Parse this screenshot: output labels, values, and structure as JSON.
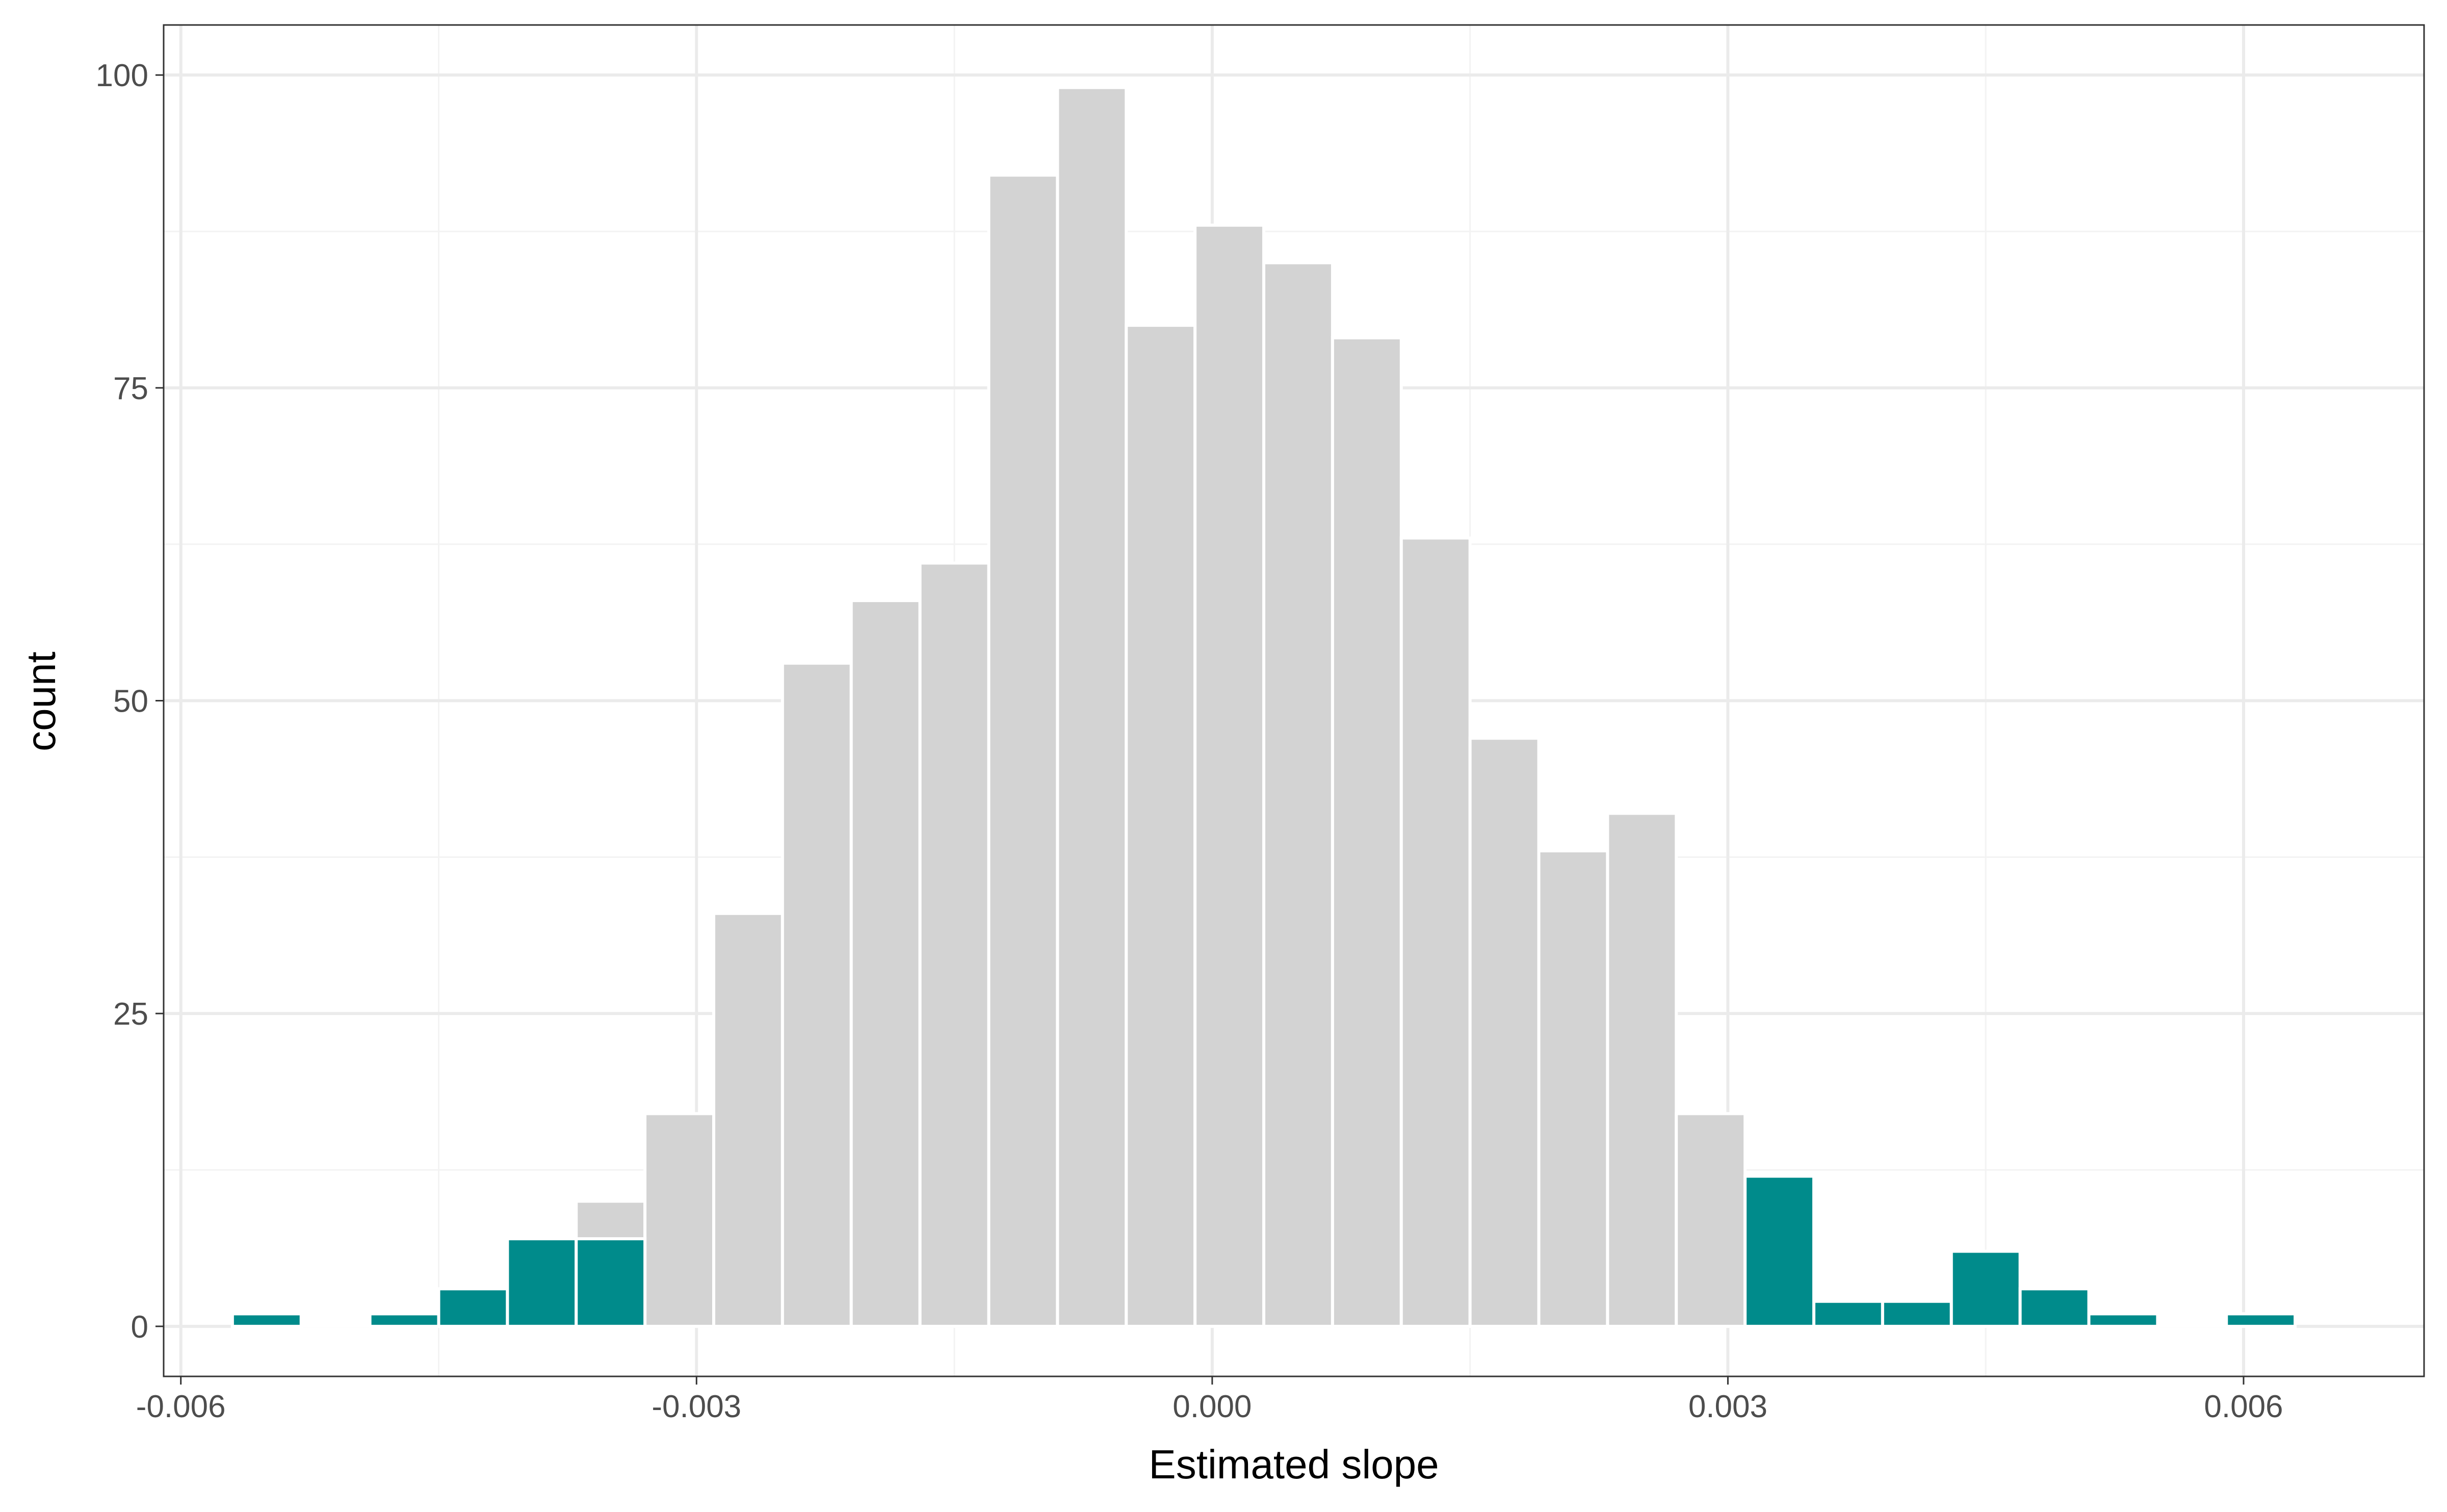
{
  "chart_data": {
    "type": "bar",
    "subtype": "histogram",
    "title": "",
    "xlabel": "Estimated slope",
    "ylabel": "count",
    "xlim": [
      -0.0061,
      0.00705
    ],
    "ylim": [
      -4,
      104
    ],
    "x_ticks": [
      -0.006,
      -0.003,
      0.0,
      0.003,
      0.006
    ],
    "x_tick_labels": [
      "-0.006",
      "-0.003",
      "0.000",
      "0.003",
      "0.006"
    ],
    "y_ticks": [
      0,
      25,
      50,
      75,
      100
    ],
    "y_tick_labels": [
      "0",
      "25",
      "50",
      "75",
      "100"
    ],
    "grid": true,
    "legend": "none",
    "colors": {
      "bar_fill": "#d3d3d3",
      "tail_fill": "#008b8b",
      "bar_outline": "#ffffff",
      "panel_border": "#333333",
      "grid_major": "#ebebeb",
      "grid_minor": "#f3f3f3"
    },
    "bins": [
      {
        "x0": -0.0057,
        "x1": -0.0053,
        "count": 1
      },
      {
        "x0": -0.0053,
        "x1": -0.0049,
        "count": 0
      },
      {
        "x0": -0.0049,
        "x1": -0.0045,
        "count": 1
      },
      {
        "x0": -0.0045,
        "x1": -0.0041,
        "count": 3
      },
      {
        "x0": -0.0041,
        "x1": -0.0037,
        "count": 7
      },
      {
        "x0": -0.0037,
        "x1": -0.0033,
        "count": 10
      },
      {
        "x0": -0.0033,
        "x1": -0.0029,
        "count": 17
      },
      {
        "x0": -0.0029,
        "x1": -0.0025,
        "count": 33
      },
      {
        "x0": -0.0025,
        "x1": -0.0021,
        "count": 53
      },
      {
        "x0": -0.0021,
        "x1": -0.0017,
        "count": 58
      },
      {
        "x0": -0.0017,
        "x1": -0.0013,
        "count": 61
      },
      {
        "x0": -0.0013,
        "x1": -0.0009,
        "count": 92
      },
      {
        "x0": -0.0009,
        "x1": -0.0005,
        "count": 99
      },
      {
        "x0": -0.0005,
        "x1": -0.0001,
        "count": 80
      },
      {
        "x0": -0.0001,
        "x1": 0.0003,
        "count": 88
      },
      {
        "x0": 0.0003,
        "x1": 0.0007,
        "count": 85
      },
      {
        "x0": 0.0007,
        "x1": 0.0011,
        "count": 79
      },
      {
        "x0": 0.0011,
        "x1": 0.0015,
        "count": 63
      },
      {
        "x0": 0.0015,
        "x1": 0.0019,
        "count": 47
      },
      {
        "x0": 0.0019,
        "x1": 0.0023,
        "count": 38
      },
      {
        "x0": 0.0023,
        "x1": 0.0027,
        "count": 41
      },
      {
        "x0": 0.0027,
        "x1": 0.0031,
        "count": 17
      },
      {
        "x0": 0.0031,
        "x1": 0.0035,
        "count": 12
      },
      {
        "x0": 0.0035,
        "x1": 0.0039,
        "count": 2
      },
      {
        "x0": 0.0039,
        "x1": 0.0043,
        "count": 2
      },
      {
        "x0": 0.0043,
        "x1": 0.0047,
        "count": 6
      },
      {
        "x0": 0.0047,
        "x1": 0.0051,
        "count": 3
      },
      {
        "x0": 0.0051,
        "x1": 0.0055,
        "count": 1
      },
      {
        "x0": 0.0055,
        "x1": 0.0059,
        "count": 0
      },
      {
        "x0": 0.0059,
        "x1": 0.0063,
        "count": 1
      }
    ],
    "tail_bins": [
      {
        "x0": -0.0057,
        "x1": -0.0053,
        "count": 1
      },
      {
        "x0": -0.0049,
        "x1": -0.0045,
        "count": 1
      },
      {
        "x0": -0.0045,
        "x1": -0.0041,
        "count": 3
      },
      {
        "x0": -0.0041,
        "x1": -0.0037,
        "count": 7
      },
      {
        "x0": -0.0037,
        "x1": -0.0033,
        "count": 7
      },
      {
        "x0": 0.0031,
        "x1": 0.0035,
        "count": 12
      },
      {
        "x0": 0.0035,
        "x1": 0.0039,
        "count": 2
      },
      {
        "x0": 0.0039,
        "x1": 0.0043,
        "count": 2
      },
      {
        "x0": 0.0043,
        "x1": 0.0047,
        "count": 6
      },
      {
        "x0": 0.0047,
        "x1": 0.0051,
        "count": 3
      },
      {
        "x0": 0.0051,
        "x1": 0.0055,
        "count": 1
      },
      {
        "x0": 0.0059,
        "x1": 0.0063,
        "count": 1
      }
    ]
  }
}
